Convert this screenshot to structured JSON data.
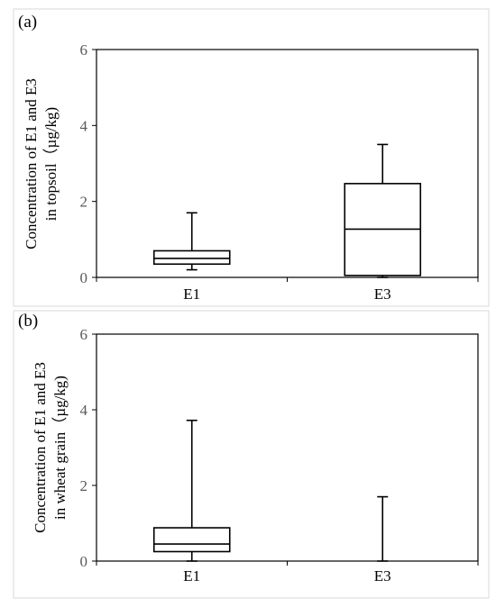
{
  "chart_data": [
    {
      "type": "boxplot",
      "panel_label": "(a)",
      "ylabel_lines": [
        "Concentration of E1 and E3",
        "in topsoil（µg/kg)"
      ],
      "ylim": [
        0,
        6
      ],
      "yticks": [
        0,
        2,
        4,
        6
      ],
      "categories": [
        "E1",
        "E3"
      ],
      "boxes": [
        {
          "name": "E1",
          "min": 0.2,
          "q1": 0.35,
          "median": 0.5,
          "q3": 0.7,
          "max": 1.7
        },
        {
          "name": "E3",
          "min": 0.0,
          "q1": 0.05,
          "median": 1.27,
          "q3": 2.47,
          "max": 3.5
        }
      ],
      "grid": false
    },
    {
      "type": "boxplot",
      "panel_label": "(b)",
      "ylabel_lines": [
        "Concentration of E1 and E3",
        "in wheat grain（µg/kg)"
      ],
      "ylim": [
        0,
        6
      ],
      "yticks": [
        0,
        2,
        4,
        6
      ],
      "categories": [
        "E1",
        "E3"
      ],
      "boxes": [
        {
          "name": "E1",
          "min": 0.0,
          "q1": 0.25,
          "median": 0.45,
          "q3": 0.88,
          "max": 3.72
        },
        {
          "name": "E3",
          "min": 0.0,
          "q1": 0.0,
          "median": 0.0,
          "q3": 0.0,
          "max": 1.7
        }
      ],
      "grid": false
    }
  ]
}
